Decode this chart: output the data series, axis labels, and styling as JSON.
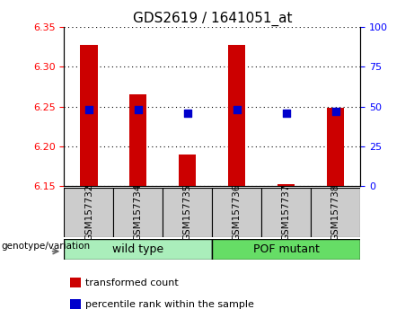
{
  "title": "GDS2619 / 1641051_at",
  "samples": [
    "GSM157732",
    "GSM157734",
    "GSM157735",
    "GSM157736",
    "GSM157737",
    "GSM157738"
  ],
  "transformed_counts": [
    6.328,
    6.265,
    6.19,
    6.328,
    6.152,
    6.248
  ],
  "percentile_ranks": [
    48,
    48,
    46,
    48,
    46,
    47
  ],
  "ylim_left": [
    6.15,
    6.35
  ],
  "ylim_right": [
    0,
    100
  ],
  "yticks_left": [
    6.15,
    6.2,
    6.25,
    6.3,
    6.35
  ],
  "yticks_right": [
    0,
    25,
    50,
    75,
    100
  ],
  "bar_color": "#cc0000",
  "dot_color": "#0000cc",
  "baseline": 6.15,
  "groups": [
    {
      "label": "wild type",
      "indices": [
        0,
        1,
        2
      ],
      "color": "#aaeebb"
    },
    {
      "label": "POF mutant",
      "indices": [
        3,
        4,
        5
      ],
      "color": "#66dd66"
    }
  ],
  "group_label": "genotype/variation",
  "legend_items": [
    {
      "label": "transformed count",
      "color": "#cc0000"
    },
    {
      "label": "percentile rank within the sample",
      "color": "#0000cc"
    }
  ],
  "grid_color": "black",
  "label_fontsize": 9,
  "title_fontsize": 11,
  "tick_fontsize": 8,
  "bar_width": 0.35,
  "dot_size": 35,
  "sample_label_color": "#cccccc"
}
